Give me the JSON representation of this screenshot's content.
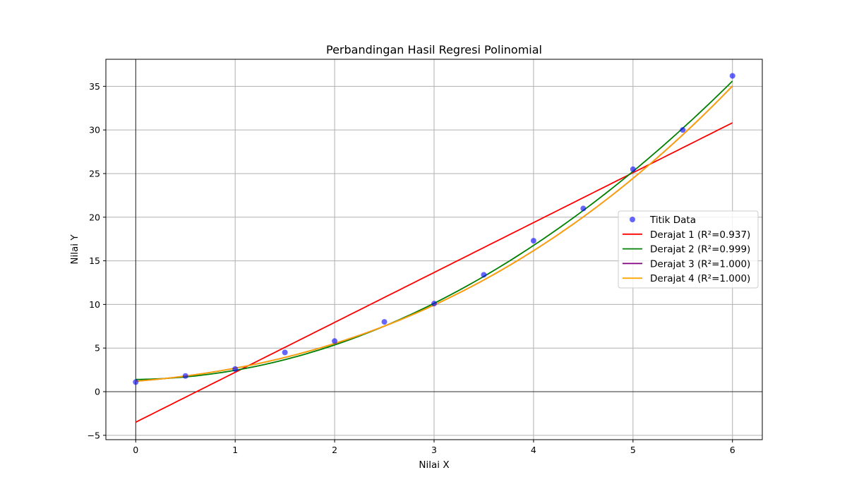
{
  "chart_data": {
    "type": "line",
    "title": "Perbandingan Hasil Regresi Polinomial",
    "xlabel": "Nilai X",
    "ylabel": "Nilai Y",
    "xlim": [
      -0.3,
      6.3
    ],
    "ylim": [
      -5.5,
      38.1
    ],
    "xticks": [
      0,
      1,
      2,
      3,
      4,
      5,
      6
    ],
    "yticks": [
      -5,
      0,
      5,
      10,
      15,
      20,
      25,
      30,
      35
    ],
    "grid": true,
    "zero_lines": true,
    "legend_position": "center-right",
    "scatter": {
      "name": "Titik Data",
      "color": "#0000ff",
      "x": [
        0,
        0.5,
        1,
        1.5,
        2,
        2.5,
        3,
        3.5,
        4,
        4.5,
        5,
        5.5,
        6
      ],
      "y": [
        1.1,
        1.8,
        2.6,
        4.5,
        5.8,
        8.0,
        10.1,
        13.4,
        17.3,
        21.0,
        25.5,
        30.0,
        36.2
      ]
    },
    "series": [
      {
        "name": "Derajat 1 (R²=0.937)",
        "color": "#ff0000",
        "coeffs": [
          -3.5,
          5.72
        ]
      },
      {
        "name": "Derajat 2 (R²=0.999)",
        "color": "#008000",
        "coeffs": [
          1.4,
          0.12,
          0.93
        ]
      },
      {
        "name": "Derajat 3 (R²=1.000)",
        "color": "#800080",
        "coeffs": [
          1.2,
          0.9,
          0.55,
          0.04
        ]
      },
      {
        "name": "Derajat 4 (R²=1.000)",
        "color": "#ffa500",
        "coeffs": [
          1.2,
          0.9,
          0.55,
          0.04,
          0
        ]
      }
    ]
  }
}
